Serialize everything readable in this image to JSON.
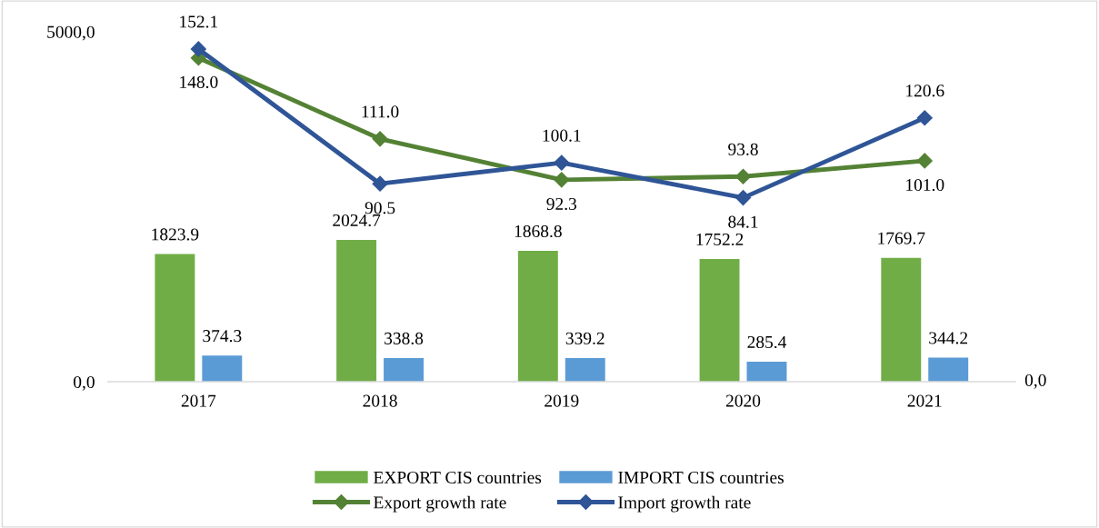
{
  "chart_data": {
    "type": "bar",
    "categories": [
      "2017",
      "2018",
      "2019",
      "2020",
      "2021"
    ],
    "series": [
      {
        "name": "EXPORT CIS countries",
        "color": "#70ad47",
        "values": [
          1823.9,
          2024.7,
          1868.8,
          1752.2,
          1769.7
        ],
        "value_labels": [
          "1823.9",
          "2024.7",
          "1868.8",
          "1752.2",
          "1769.7"
        ]
      },
      {
        "name": "IMPORT CIS countries",
        "color": "#5b9bd5",
        "values": [
          374.3,
          338.8,
          339.2,
          285.4,
          344.2
        ],
        "value_labels": [
          "374.3",
          "338.8",
          "339.2",
          "285.4",
          "344.2"
        ]
      },
      {
        "name": "Export growth rate",
        "type": "line",
        "axis": "y2",
        "color": "#548235",
        "values": [
          148.0,
          111.0,
          92.3,
          93.8,
          101.0
        ],
        "value_labels": [
          "148.0",
          "111.0",
          "92.3",
          "93.8",
          "101.0"
        ]
      },
      {
        "name": "Import growth rate",
        "type": "line",
        "axis": "y2",
        "color": "#2f5597",
        "values": [
          152.1,
          90.5,
          100.1,
          84.1,
          120.6
        ],
        "value_labels": [
          "152.1",
          "90.5",
          "100.1",
          "84.1",
          "120.6"
        ]
      }
    ],
    "ylim": [
      0,
      5000
    ],
    "yticks": [
      {
        "value": 0,
        "label": "0,0"
      },
      {
        "value": 5000,
        "label": "5000,0"
      }
    ],
    "annotations": [
      "0,0"
    ],
    "legend": "bottom",
    "marker": "diamond",
    "line_style": "solid"
  }
}
